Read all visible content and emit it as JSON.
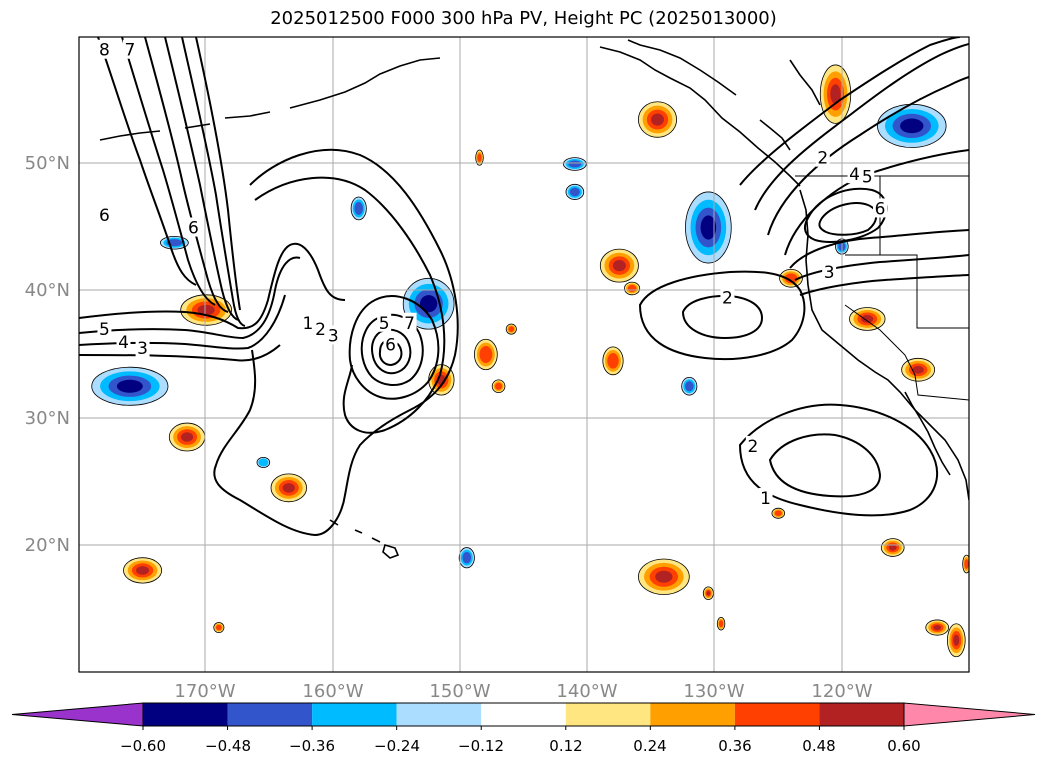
{
  "title": "2025012500 F000 300 hPa PV, Height PC (2025013000)",
  "axes": {
    "lat_labels": [
      "50°N",
      "40°N",
      "30°N",
      "20°N"
    ],
    "lon_labels": [
      "170°W",
      "160°W",
      "150°W",
      "140°W",
      "130°W",
      "120°W"
    ],
    "lat_range": [
      10,
      60
    ],
    "lon_range": [
      -180,
      -110
    ],
    "grid": true
  },
  "colorbar": {
    "tick_labels": [
      "−0.60",
      "−0.48",
      "−0.36",
      "−0.24",
      "−0.12",
      "0.12",
      "0.24",
      "0.36",
      "0.48",
      "0.60"
    ],
    "colors": [
      "#9933cc",
      "#000080",
      "#3355cc",
      "#00bbff",
      "#aaddff",
      "#ffffff",
      "#ffe680",
      "#ffa000",
      "#ff4000",
      "#b22222",
      "#ff88aa"
    ],
    "extend": "both"
  },
  "contour_labels": [
    {
      "text": "8",
      "lon": -178.0,
      "lat": 59.0
    },
    {
      "text": "7",
      "lon": -176.0,
      "lat": 59.0
    },
    {
      "text": "6",
      "lon": -178.0,
      "lat": 46.0
    },
    {
      "text": "6",
      "lon": -171.0,
      "lat": 45.0
    },
    {
      "text": "5",
      "lon": -178.0,
      "lat": 37.0
    },
    {
      "text": "4",
      "lon": -176.5,
      "lat": 36.0
    },
    {
      "text": "3",
      "lon": -175.0,
      "lat": 35.5
    },
    {
      "text": "1",
      "lon": -162.0,
      "lat": 37.5
    },
    {
      "text": "2",
      "lon": -161.0,
      "lat": 37.0
    },
    {
      "text": "3",
      "lon": -160.0,
      "lat": 36.5
    },
    {
      "text": "5",
      "lon": -156.0,
      "lat": 37.5
    },
    {
      "text": "6",
      "lon": -155.5,
      "lat": 35.8
    },
    {
      "text": "7",
      "lon": -154.0,
      "lat": 37.5
    },
    {
      "text": "2",
      "lon": -129.0,
      "lat": 39.5
    },
    {
      "text": "2",
      "lon": -127.0,
      "lat": 27.8
    },
    {
      "text": "1",
      "lon": -126.0,
      "lat": 23.7
    },
    {
      "text": "2",
      "lon": -121.5,
      "lat": 50.5
    },
    {
      "text": "4",
      "lon": -119.0,
      "lat": 49.2
    },
    {
      "text": "5",
      "lon": -118.0,
      "lat": 49.0
    },
    {
      "text": "6",
      "lon": -117.0,
      "lat": 46.5
    },
    {
      "text": "3",
      "lon": -121.0,
      "lat": 41.5
    }
  ],
  "pv_anomalies": [
    {
      "sign": "negative",
      "peak": -0.6,
      "lon": -176.0,
      "lat": 32.5,
      "rx": 3.0,
      "ry": 1.5
    },
    {
      "sign": "negative",
      "peak": -0.36,
      "lon": -172.5,
      "lat": 43.8,
      "rx": 1.1,
      "ry": 0.5
    },
    {
      "sign": "negative",
      "peak": -0.6,
      "lon": -152.5,
      "lat": 39.0,
      "rx": 2.0,
      "ry": 2.0
    },
    {
      "sign": "negative",
      "peak": -0.36,
      "lon": -158.0,
      "lat": 46.5,
      "rx": 0.6,
      "ry": 0.9
    },
    {
      "sign": "negative",
      "peak": -0.36,
      "lon": -141.0,
      "lat": 50.0,
      "rx": 0.9,
      "ry": 0.5
    },
    {
      "sign": "negative",
      "peak": -0.36,
      "lon": -141.0,
      "lat": 47.8,
      "rx": 0.7,
      "ry": 0.6
    },
    {
      "sign": "negative",
      "peak": -0.6,
      "lon": -130.5,
      "lat": 45.0,
      "rx": 1.8,
      "ry": 2.8
    },
    {
      "sign": "negative",
      "peak": -0.6,
      "lon": -114.5,
      "lat": 53.0,
      "rx": 2.7,
      "ry": 1.7
    },
    {
      "sign": "negative",
      "peak": -0.36,
      "lon": -132.0,
      "lat": 32.5,
      "rx": 0.6,
      "ry": 0.7
    },
    {
      "sign": "negative",
      "peak": -0.36,
      "lon": -149.5,
      "lat": 19.0,
      "rx": 0.6,
      "ry": 0.8
    },
    {
      "sign": "negative",
      "peak": -0.36,
      "lon": -120.0,
      "lat": 43.5,
      "rx": 0.5,
      "ry": 0.6
    },
    {
      "sign": "negative",
      "peak": -0.24,
      "lon": -165.5,
      "lat": 26.5,
      "rx": 0.5,
      "ry": 0.4
    },
    {
      "sign": "positive",
      "peak": 0.48,
      "lon": -170.0,
      "lat": 38.5,
      "rx": 2.0,
      "ry": 1.2
    },
    {
      "sign": "positive",
      "peak": 0.48,
      "lon": -151.5,
      "lat": 33.0,
      "rx": 1.0,
      "ry": 1.2
    },
    {
      "sign": "positive",
      "peak": 0.48,
      "lon": -171.5,
      "lat": 28.5,
      "rx": 1.4,
      "ry": 1.1
    },
    {
      "sign": "positive",
      "peak": 0.48,
      "lon": -163.5,
      "lat": 24.5,
      "rx": 1.4,
      "ry": 1.1
    },
    {
      "sign": "positive",
      "peak": 0.48,
      "lon": -175.0,
      "lat": 18.0,
      "rx": 1.5,
      "ry": 1.0
    },
    {
      "sign": "positive",
      "peak": 0.36,
      "lon": -148.0,
      "lat": 35.0,
      "rx": 0.9,
      "ry": 1.2
    },
    {
      "sign": "positive",
      "peak": 0.36,
      "lon": -148.5,
      "lat": 50.5,
      "rx": 0.3,
      "ry": 0.6
    },
    {
      "sign": "positive",
      "peak": 0.48,
      "lon": -137.5,
      "lat": 42.0,
      "rx": 1.5,
      "ry": 1.3
    },
    {
      "sign": "positive",
      "peak": 0.36,
      "lon": -136.5,
      "lat": 40.2,
      "rx": 0.6,
      "ry": 0.5
    },
    {
      "sign": "positive",
      "peak": 0.36,
      "lon": -138.0,
      "lat": 34.5,
      "rx": 0.8,
      "ry": 1.1
    },
    {
      "sign": "positive",
      "peak": 0.48,
      "lon": -134.5,
      "lat": 53.5,
      "rx": 1.5,
      "ry": 1.4
    },
    {
      "sign": "positive",
      "peak": 0.48,
      "lon": -120.5,
      "lat": 55.5,
      "rx": 1.2,
      "ry": 2.3
    },
    {
      "sign": "positive",
      "peak": 0.36,
      "lon": -124.0,
      "lat": 41.0,
      "rx": 0.9,
      "ry": 0.7
    },
    {
      "sign": "positive",
      "peak": 0.48,
      "lon": -118.0,
      "lat": 37.8,
      "rx": 1.4,
      "ry": 0.9
    },
    {
      "sign": "positive",
      "peak": 0.48,
      "lon": -114.0,
      "lat": 33.8,
      "rx": 1.3,
      "ry": 0.9
    },
    {
      "sign": "positive",
      "peak": 0.48,
      "lon": -116.0,
      "lat": 19.8,
      "rx": 0.9,
      "ry": 0.7
    },
    {
      "sign": "positive",
      "peak": 0.48,
      "lon": -134.0,
      "lat": 17.5,
      "rx": 2.0,
      "ry": 1.4
    },
    {
      "sign": "positive",
      "peak": 0.48,
      "lon": -130.5,
      "lat": 16.2,
      "rx": 0.4,
      "ry": 0.5
    },
    {
      "sign": "positive",
      "peak": 0.36,
      "lon": -129.5,
      "lat": 13.8,
      "rx": 0.3,
      "ry": 0.5
    },
    {
      "sign": "positive",
      "peak": 0.36,
      "lon": -125.0,
      "lat": 22.5,
      "rx": 0.5,
      "ry": 0.4
    },
    {
      "sign": "positive",
      "peak": 0.48,
      "lon": -111.0,
      "lat": 12.5,
      "rx": 0.7,
      "ry": 1.3
    },
    {
      "sign": "positive",
      "peak": 0.48,
      "lon": -112.5,
      "lat": 13.5,
      "rx": 0.9,
      "ry": 0.6
    },
    {
      "sign": "positive",
      "peak": 0.36,
      "lon": -110.2,
      "lat": 18.5,
      "rx": 0.3,
      "ry": 0.7
    },
    {
      "sign": "positive",
      "peak": 0.36,
      "lon": -147.0,
      "lat": 32.5,
      "rx": 0.5,
      "ry": 0.5
    },
    {
      "sign": "positive",
      "peak": 0.36,
      "lon": -146.0,
      "lat": 37.0,
      "rx": 0.4,
      "ry": 0.4
    },
    {
      "sign": "positive",
      "peak": 0.36,
      "lon": -169.0,
      "lat": 13.5,
      "rx": 0.4,
      "ry": 0.4
    }
  ]
}
